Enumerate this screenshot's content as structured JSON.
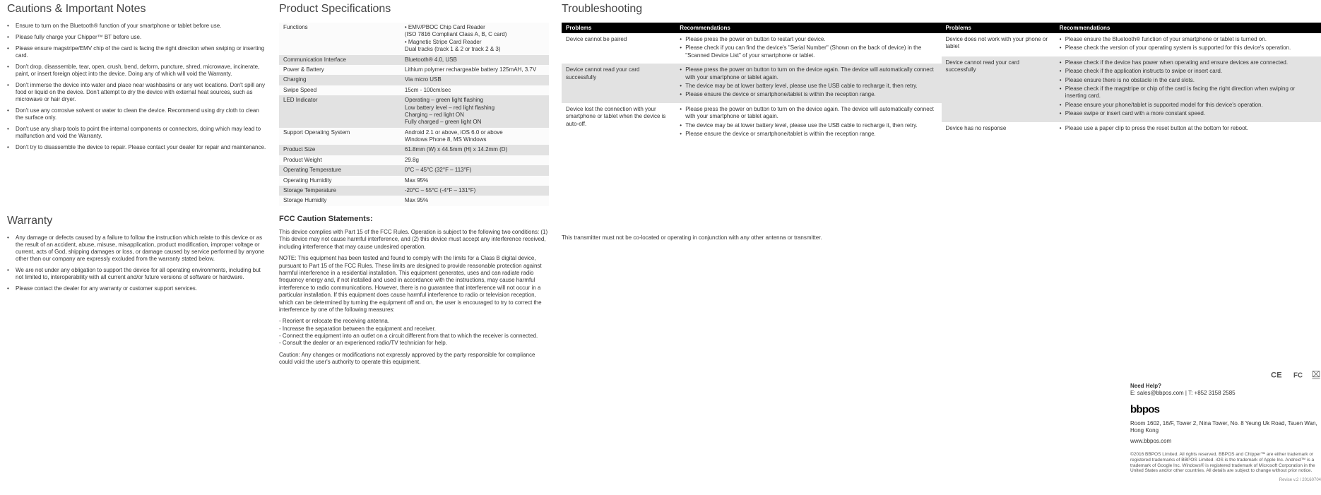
{
  "cautions": {
    "heading": "Cautions & Important Notes",
    "items": [
      "Ensure to turn on the Bluetooth® function of your smartphone or tablet before use.",
      "Please fully charge your Chipper™ BT before use.",
      "Please ensure magstripe/EMV chip of the card is facing the right direction when swiping or inserting card.",
      "Don't drop, disassemble, tear, open, crush, bend, deform, puncture, shred, microwave, incinerate, paint, or insert foreign object into the device. Doing any of which will void the Warranty.",
      "Don't immerse the device into water and place near washbasins or any wet locations. Don't spill any food or liquid on the device. Don't attempt to dry the device with external heat sources, such as microwave or hair dryer.",
      "Don't use any corrosive solvent or water to clean the device. Recommend using dry cloth to clean the surface only.",
      "Don't use any sharp tools to point the internal components or connectors, doing which may lead to malfunction and void the Warranty.",
      "Don't try to disassemble the device to repair. Please contact your dealer for repair and maintenance."
    ]
  },
  "specs": {
    "heading": "Product Specifications",
    "rows": [
      {
        "k": "Functions",
        "v": "• EMV/PBOC Chip Card Reader\n  (ISO 7816 Compliant Class A, B, C card)\n• Magnetic Stripe Card Reader\n  Dual tracks (track 1 & 2 or track 2 & 3)",
        "shade": false
      },
      {
        "k": "Communication Interface",
        "v": "Bluetooth® 4.0, USB",
        "shade": true
      },
      {
        "k": "Power & Battery",
        "v": "Lithium polymer rechargeable battery 125mAH, 3.7V",
        "shade": false
      },
      {
        "k": "Charging",
        "v": "Via micro USB",
        "shade": true
      },
      {
        "k": "Swipe Speed",
        "v": "15cm - 100cm/sec",
        "shade": false
      },
      {
        "k": "LED Indicator",
        "v": "Operating – green light flashing\nLow battery level – red light flashing\nCharging – red light ON\nFully charged – green light ON",
        "shade": true
      },
      {
        "k": "Support Operating System",
        "v": "Android 2.1 or above, iOS 6.0 or above\nWindows Phone 8, MS Windows",
        "shade": false
      },
      {
        "k": "Product Size",
        "v": "61.8mm (W) x 44.5mm (H) x 14.2mm (D)",
        "shade": true
      },
      {
        "k": "Product Weight",
        "v": "29.8g",
        "shade": false
      },
      {
        "k": "Operating Temperature",
        "v": "0°C – 45°C (32°F – 113°F)",
        "shade": true
      },
      {
        "k": "Operating Humidity",
        "v": "Max 95%",
        "shade": false
      },
      {
        "k": "Storage Temperature",
        "v": "-20°C – 55°C (-4°F – 131°F)",
        "shade": true
      },
      {
        "k": "Storage Humidity",
        "v": "Max 95%",
        "shade": false
      }
    ]
  },
  "trouble": {
    "heading": "Troubleshooting",
    "th_problems": "Problems",
    "th_recs": "Recommendations",
    "left": [
      {
        "p": "Device cannot be paired",
        "r": [
          "Please press the power on button to restart your device.",
          "Please check if you can find the device's \"Serial Number\" (Shown on the back of device) in the \"Scanned Device List\" of your smartphone or tablet."
        ],
        "shade": false
      },
      {
        "p": "Device cannot read your card successfully",
        "r": [
          "Please press the power on button to turn on the device again. The device will automatically connect with your smartphone or tablet again.",
          "The device may be at lower battery level, please use the USB cable to recharge it, then retry.",
          "Please ensure the device or smartphone/tablet is within the reception range."
        ],
        "shade": true
      },
      {
        "p": "Device lost the connection with your smartphone or tablet when the device is auto-off.",
        "r": [
          "Please press the power on button to turn on the device again. The device will automatically connect with your smartphone or tablet again.",
          "The device may be at lower battery level, please use the USB cable to recharge it, then retry.",
          "Please ensure the device or smartphone/tablet is within the reception range."
        ],
        "shade": false
      }
    ],
    "right": [
      {
        "p": "Device does not work with your phone or tablet",
        "r": [
          "Please ensure the Bluetooth® function of your smartphone or tablet is turned on.",
          "Please check the version of your operating system is supported for this device's operation."
        ],
        "shade": false
      },
      {
        "p": "Device cannot read your card successfully",
        "r": [
          "Please check if the device has power when operating and ensure devices are connected.",
          "Please check if the application instructs to swipe or insert card.",
          "Please ensure there is no obstacle in the card slots.",
          "Please check if the magstripe or chip of the card is facing the right direction when swiping or inserting card.",
          "Please ensure your phone/tablet is supported model for this device's operation.",
          "Please swipe or insert card with a more constant speed."
        ],
        "shade": true
      },
      {
        "p": "Device has no response",
        "r": [
          "Please use a paper clip to press the reset button at the bottom for reboot."
        ],
        "shade": false
      }
    ]
  },
  "warranty": {
    "heading": "Warranty",
    "items": [
      "Any damage or defects caused by a failure to follow the instruction which relate to this device or as the result of an accident, abuse, misuse, misapplication, product modification, improper voltage or current, acts of God, shipping damages or loss, or damage caused by service performed by anyone other than our company are expressly excluded from the warranty stated below.",
      "We are not under any obligation to support the device for all operating environments, including but not limited to, interoperability with all current and/or future versions of software or hardware.",
      "Please contact the dealer for any warranty or customer support services."
    ]
  },
  "fcc": {
    "heading": "FCC Caution Statements:",
    "p1": "This device complies with Part 15 of the FCC Rules. Operation is subject to the following two conditions: (1) This device may not cause harmful interference, and (2) this device must accept any interference received, including interference that may cause undesired operation.",
    "p2": "NOTE: This equipment has been tested and found to comply with the limits for a Class B digital device, pursuant to Part 15 of the FCC Rules.  These limits are designed to provide reasonable protection against harmful interference in a residential installation. This equipment generates, uses and can radiate radio frequency energy and, if not installed and used in accordance with the instructions, may cause harmful interference to radio communications. However, there is no guarantee that interference will not occur in a particular installation.  If this equipment does cause harmful interference to radio or television reception, which can be determined by turning the equipment off and on, the user is encouraged to try to correct the interference by one of the following measures:",
    "list": [
      "- Reorient or relocate the receiving antenna.",
      "- Increase the separation between the equipment and receiver.",
      "- Connect the equipment into an outlet on a circuit different from that to which the receiver is connected.",
      "- Consult the dealer or an experienced radio/TV technician for help."
    ],
    "p3": "Caution: Any changes or modifications not expressly approved by the party responsible for compliance could void the user's authority to operate this equipment."
  },
  "txnote": "This transmitter must not be co-located or operating in conjunction with any other antenna or transmitter.",
  "footer": {
    "help_label": "Need Help?",
    "help_line": "E: sales@bbpos.com  |  T: +852 3158 2585",
    "addr": "Room 1602, 16/F, Tower 2, Nina Tower, No. 8 Yeung Uk Road, Tsuen Wan, Hong Kong",
    "url": "www.bbpos.com",
    "legal": "©2016 BBPOS Limited. All rights reserved. BBPOS and Chipper™ are either trademark or registered trademarks of BBPOS Limited. iOS is the trademark of Apple Inc. Android™ is a trademark of Google Inc. Windows® is registered trademark of Microsoft Corporation in the United States and/or other countries. All details are subject to change without prior notice.",
    "revise": "Revise v.2 / 20160704"
  }
}
